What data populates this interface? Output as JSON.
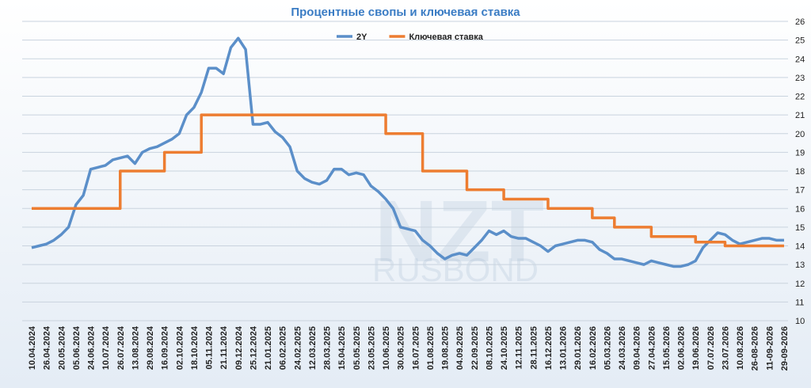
{
  "chart_data": {
    "type": "line",
    "title": "Процентные свопы и ключевая ставка",
    "annotations": [
      "NZT",
      "RUSBOND"
    ],
    "categories": [
      "10.04.2024",
      null,
      "26.04.2024",
      null,
      "20.05.2024",
      null,
      "05.06.2024",
      null,
      "24.06.2024",
      null,
      "10.07.2024",
      null,
      "26.07.2024",
      null,
      "13.08.2024",
      null,
      "29.08.2024",
      null,
      "16.09.2024",
      null,
      "02.10.2024",
      null,
      "18.10.2024",
      null,
      "05.11.2024",
      null,
      "21.11.2024",
      null,
      "09.12.2024",
      null,
      "25.12.2024",
      null,
      "21.01.2025",
      null,
      "06.02.2025",
      null,
      "24.02.2025",
      null,
      "12.03.2025",
      null,
      "28.03.2025",
      null,
      "15.04.2025",
      null,
      "05.05.2025",
      null,
      "23.05.2025",
      null,
      "10.06.2025",
      null,
      "30.06.2025",
      null,
      "16.07.2025",
      null,
      "01.08.2025",
      null,
      "19.08.2025",
      null,
      "04.09.2025",
      null,
      "22.09.2025",
      null,
      "08.10.2025",
      null,
      "24.10.2025",
      null,
      "12.11.2025",
      null,
      "28.11.2025",
      null,
      "16.12.2025",
      null,
      "13.01.2026",
      null,
      "29.01.2026",
      null,
      "16.02.2026",
      null,
      "05.03.2026",
      null,
      "24.03.2026",
      null,
      "09.04.2026",
      null,
      "27.04.2026",
      null,
      "15.05.2026",
      null,
      "02.06.2026",
      null,
      "19.06.2026",
      null,
      "07.07.2026",
      null,
      "23.07.2026",
      null,
      "10.08.2026",
      null,
      "26-08-2026",
      null,
      "11-09-2026",
      null,
      "29-09-2026"
    ],
    "series": [
      {
        "name": "2Y",
        "color": "#5b8fc9",
        "step": false,
        "values": [
          13.9,
          14.0,
          14.1,
          14.3,
          14.6,
          15.0,
          16.2,
          16.7,
          18.1,
          18.2,
          18.3,
          18.6,
          18.7,
          18.8,
          18.4,
          19.0,
          19.2,
          19.3,
          19.5,
          19.7,
          20.0,
          21.0,
          21.4,
          22.2,
          23.5,
          23.5,
          23.2,
          24.6,
          25.1,
          24.5,
          20.5,
          20.5,
          20.6,
          20.1,
          19.8,
          19.3,
          18.0,
          17.6,
          17.4,
          17.3,
          17.5,
          18.1,
          18.1,
          17.8,
          17.9,
          17.8,
          17.2,
          16.9,
          16.5,
          16.0,
          15.0,
          14.9,
          14.8,
          14.3,
          14.0,
          13.6,
          13.3,
          13.5,
          13.6,
          13.5,
          13.9,
          14.3,
          14.8,
          14.6,
          14.8,
          14.5,
          14.4,
          14.4,
          14.2,
          14.0,
          13.7,
          14.0,
          14.1,
          14.2,
          14.3,
          14.3,
          14.2,
          13.8,
          13.6,
          13.3,
          13.3,
          13.2,
          13.1,
          13.0,
          13.2,
          13.1,
          13.0,
          12.9,
          12.9,
          13.0,
          13.2,
          13.9,
          14.3,
          14.7,
          14.6,
          14.3,
          14.1,
          14.2,
          14.3,
          14.4,
          14.4,
          14.3,
          14.3
        ]
      },
      {
        "name": "Ключевая ставка",
        "color": "#ed7d31",
        "step": true,
        "values": [
          16,
          16,
          16,
          16,
          16,
          16,
          16,
          16,
          16,
          16,
          16,
          16,
          18,
          18,
          18,
          18,
          18,
          18,
          19,
          19,
          19,
          19,
          19,
          21,
          21,
          21,
          21,
          21,
          21,
          21,
          21,
          21,
          21,
          21,
          21,
          21,
          21,
          21,
          21,
          21,
          21,
          21,
          21,
          21,
          21,
          21,
          21,
          21,
          20,
          20,
          20,
          20,
          20,
          18,
          18,
          18,
          18,
          18,
          18,
          17,
          17,
          17,
          17,
          17,
          16.5,
          16.5,
          16.5,
          16.5,
          16.5,
          16.5,
          16,
          16,
          16,
          16,
          16,
          16,
          15.5,
          15.5,
          15.5,
          15,
          15,
          15,
          15,
          15,
          14.5,
          14.5,
          14.5,
          14.5,
          14.5,
          14.5,
          14.2,
          14.2,
          14.2,
          14.2,
          14,
          14,
          14,
          14,
          14,
          14,
          14,
          14,
          14
        ]
      }
    ],
    "ylim": [
      10,
      26
    ],
    "yticks": [
      10,
      11,
      12,
      13,
      14,
      15,
      16,
      17,
      18,
      19,
      20,
      21,
      22,
      23,
      24,
      25,
      26
    ],
    "grid": true,
    "legend": "top"
  }
}
